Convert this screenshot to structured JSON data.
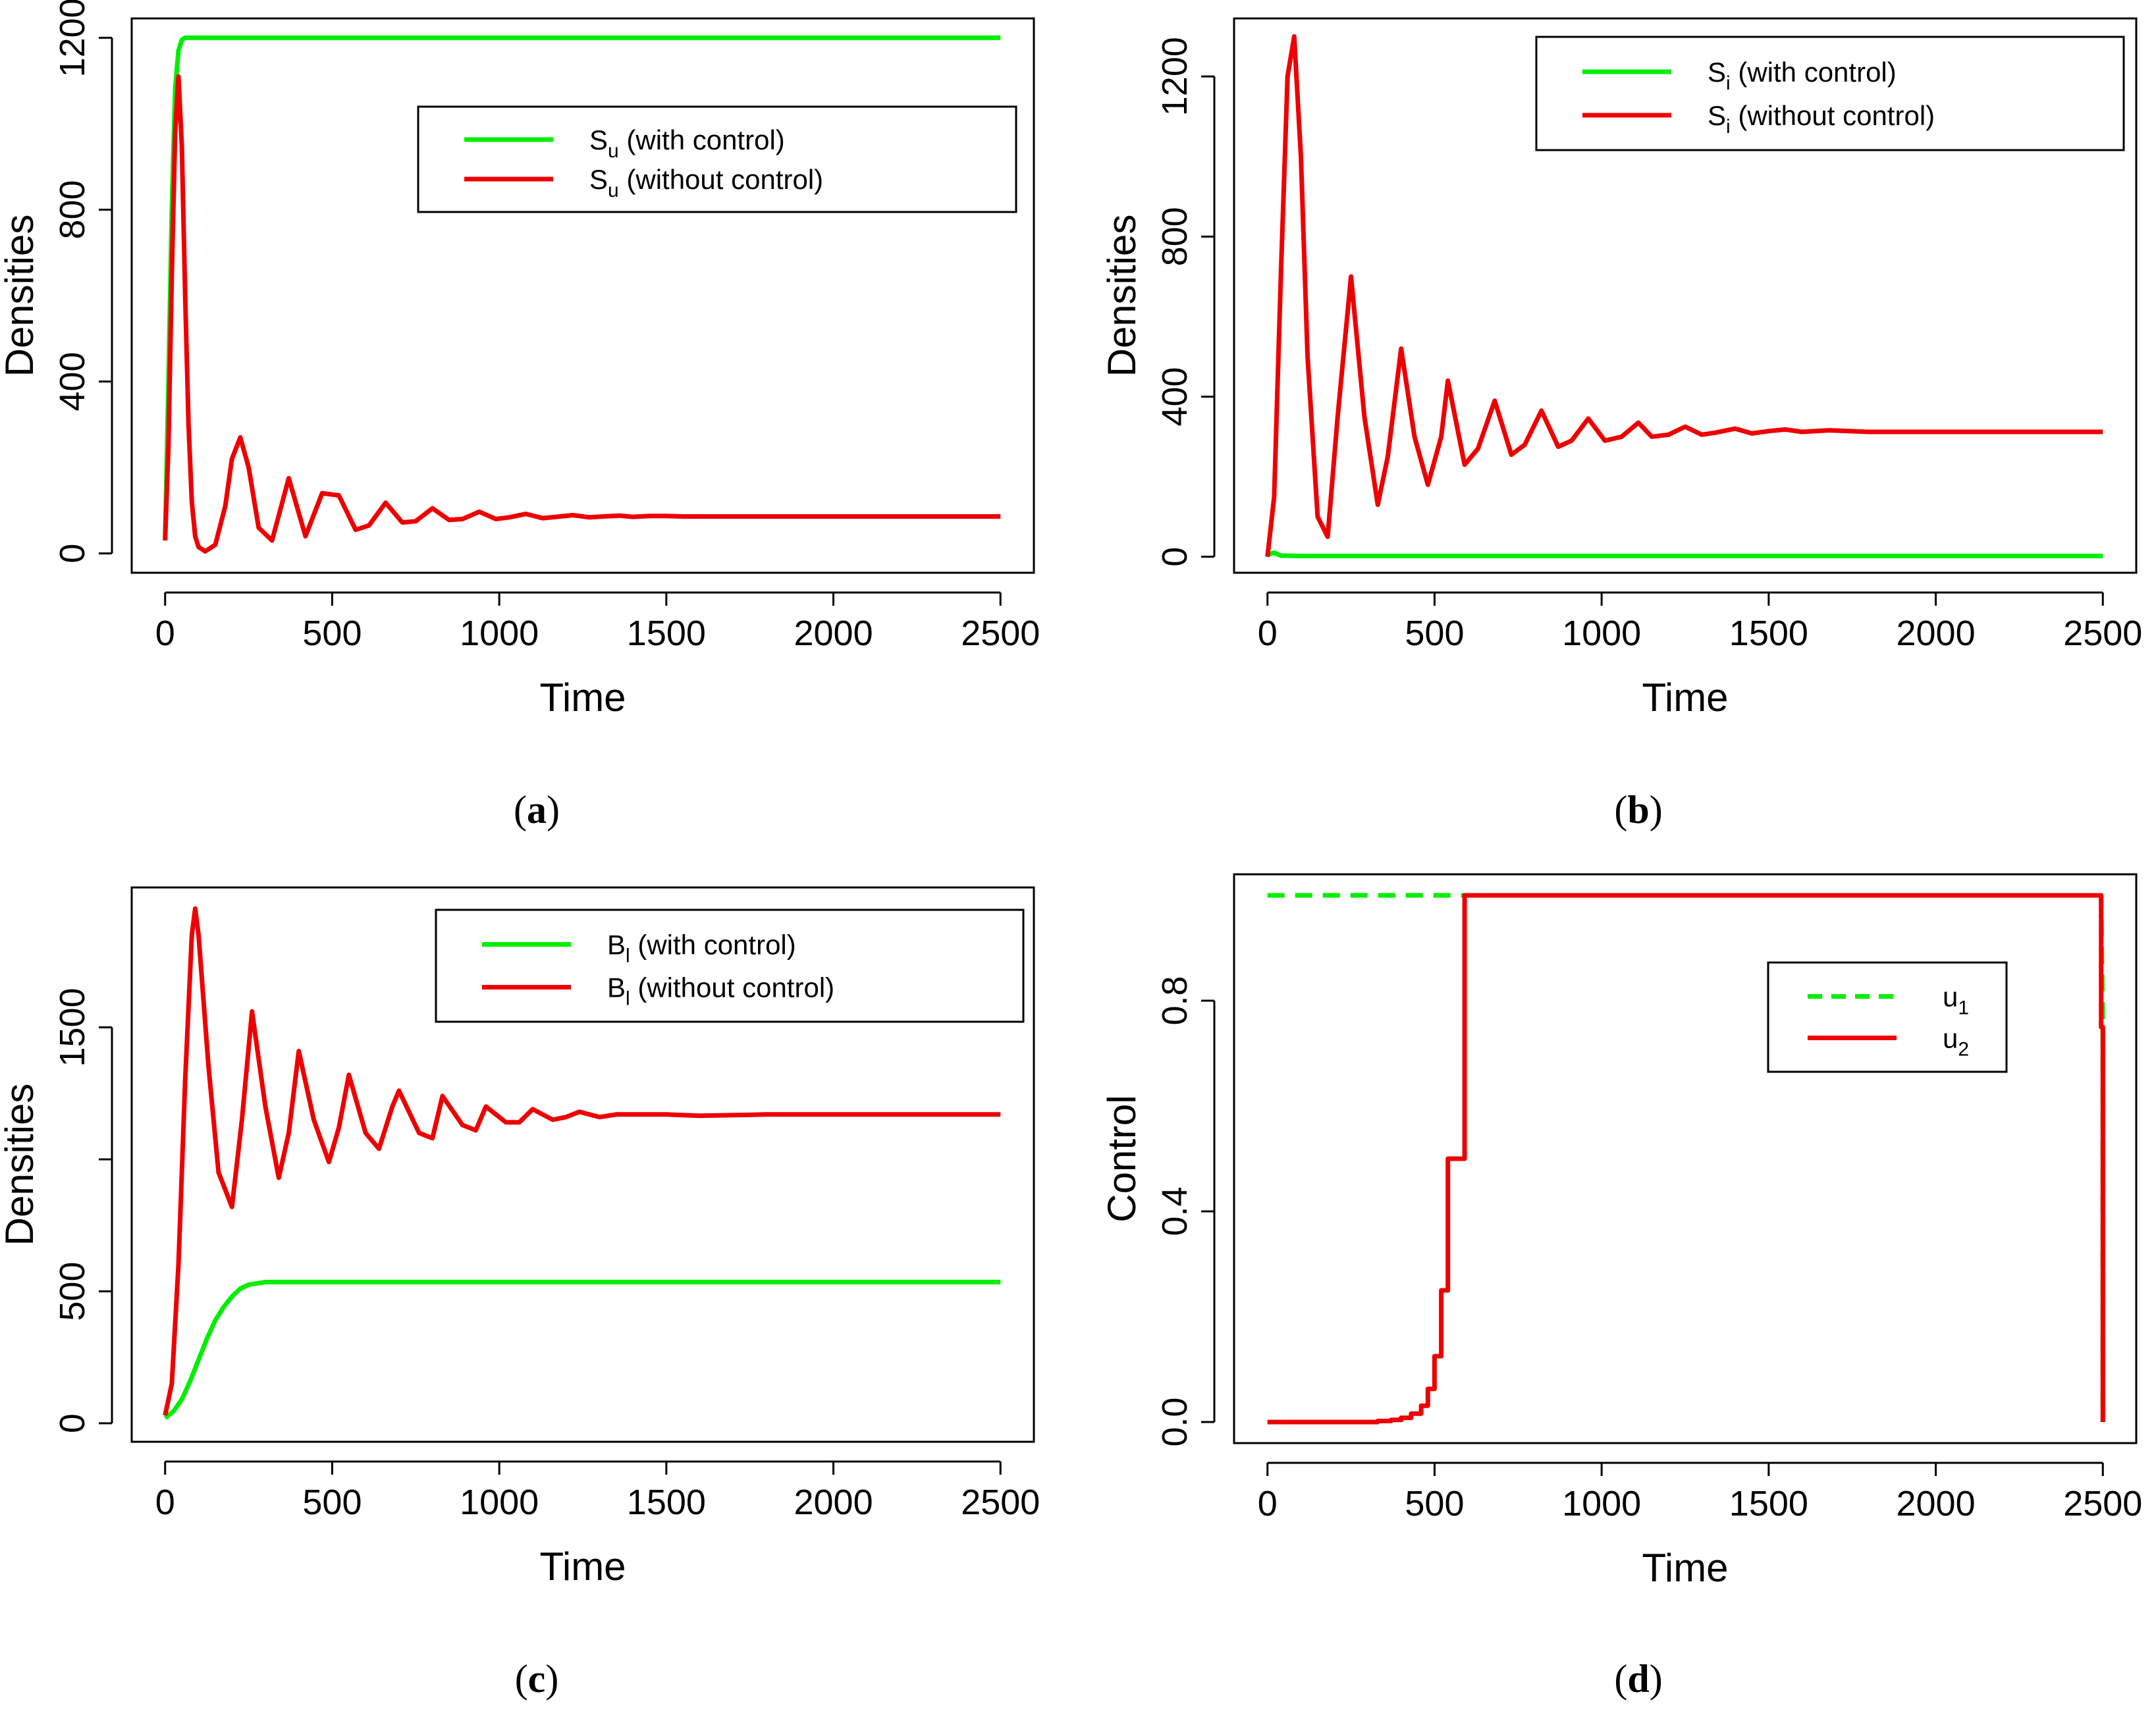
{
  "colors": {
    "with_control": "#00ee00",
    "without_control": "#ee0000",
    "u1": "#00ee00",
    "u2": "#ee0000"
  },
  "chart_data": [
    {
      "panel": "a",
      "type": "line",
      "xlabel": "Time",
      "ylabel": "Densities",
      "xlim": [
        -100,
        2600
      ],
      "ylim": [
        -45,
        1245
      ],
      "xticks": [
        0,
        500,
        1000,
        1500,
        2000,
        2500
      ],
      "yticks": [
        0,
        400,
        800,
        1200
      ],
      "legend_position": "top-right",
      "series": [
        {
          "name": "with control",
          "label_sym": "S",
          "label_sub": "u",
          "label_rest": " (with control)",
          "color": "#00ee00",
          "style": "solid",
          "x": [
            0,
            10,
            20,
            30,
            40,
            50,
            60,
            80,
            100,
            200,
            500,
            1000,
            1500,
            2000,
            2500
          ],
          "y": [
            30,
            400,
            800,
            1080,
            1170,
            1195,
            1200,
            1200,
            1200,
            1200,
            1200,
            1200,
            1200,
            1200,
            1200
          ]
        },
        {
          "name": "without control",
          "label_sym": "S",
          "label_sub": "u",
          "label_rest": " (without control)",
          "color": "#ee0000",
          "style": "solid",
          "x": [
            0,
            10,
            20,
            30,
            40,
            50,
            60,
            70,
            80,
            90,
            100,
            120,
            150,
            180,
            200,
            225,
            250,
            280,
            320,
            370,
            420,
            470,
            520,
            570,
            610,
            660,
            710,
            750,
            800,
            850,
            890,
            940,
            990,
            1030,
            1080,
            1130,
            1170,
            1220,
            1270,
            1310,
            1360,
            1400,
            1450,
            1500,
            1550,
            1650,
            1800,
            2000,
            2200,
            2500
          ],
          "y": [
            30,
            250,
            650,
            980,
            1110,
            950,
            600,
            300,
            120,
            40,
            15,
            5,
            20,
            110,
            220,
            270,
            200,
            60,
            30,
            175,
            40,
            140,
            135,
            55,
            65,
            118,
            72,
            75,
            105,
            78,
            80,
            97,
            80,
            84,
            92,
            82,
            85,
            89,
            84,
            86,
            88,
            85,
            87,
            87,
            86,
            86,
            86,
            86,
            86,
            86
          ]
        }
      ]
    },
    {
      "panel": "b",
      "type": "line",
      "xlabel": "Time",
      "ylabel": "Densities",
      "xlim": [
        -100,
        2600
      ],
      "ylim": [
        -40,
        1345
      ],
      "xticks": [
        0,
        500,
        1000,
        1500,
        2000,
        2500
      ],
      "yticks": [
        0,
        400,
        800,
        1200
      ],
      "legend_position": "top-right",
      "series": [
        {
          "name": "with control",
          "label_sym": "S",
          "label_sub": "i",
          "label_rest": " (with control)",
          "color": "#00ee00",
          "style": "solid",
          "x": [
            0,
            20,
            40,
            100,
            500,
            1000,
            1500,
            2000,
            2500
          ],
          "y": [
            5,
            10,
            3,
            2,
            2,
            2,
            2,
            2,
            2
          ]
        },
        {
          "name": "without control",
          "label_sym": "S",
          "label_sub": "i",
          "label_rest": " (without control)",
          "color": "#ee0000",
          "style": "solid",
          "x": [
            0,
            20,
            40,
            60,
            80,
            100,
            120,
            150,
            180,
            210,
            250,
            290,
            330,
            360,
            400,
            440,
            480,
            520,
            540,
            590,
            630,
            680,
            730,
            770,
            820,
            870,
            910,
            960,
            1010,
            1060,
            1110,
            1150,
            1200,
            1250,
            1300,
            1340,
            1400,
            1450,
            1500,
            1550,
            1600,
            1680,
            1800,
            2000,
            2500
          ],
          "y": [
            0,
            150,
            700,
            1200,
            1300,
            1000,
            500,
            100,
            50,
            350,
            700,
            350,
            130,
            250,
            520,
            300,
            180,
            300,
            440,
            230,
            270,
            390,
            255,
            280,
            365,
            275,
            290,
            345,
            290,
            300,
            335,
            300,
            305,
            325,
            305,
            310,
            320,
            308,
            314,
            318,
            312,
            316,
            312,
            312,
            312
          ]
        }
      ]
    },
    {
      "panel": "c",
      "type": "line",
      "xlabel": "Time",
      "ylabel": "Densities",
      "xlim": [
        -100,
        2600
      ],
      "ylim": [
        -70,
        2030
      ],
      "xticks": [
        0,
        500,
        1000,
        1500,
        2000,
        2500
      ],
      "yticks": [
        0,
        500,
        1000,
        1500
      ],
      "ytick_labels": [
        "0",
        "500",
        "",
        "1500"
      ],
      "legend_position": "top-right",
      "series": [
        {
          "name": "with control",
          "label_sym": "B",
          "label_sub": "l",
          "label_rest": " (with control)",
          "color": "#00ee00",
          "style": "solid",
          "x": [
            0,
            25,
            50,
            75,
            100,
            125,
            150,
            175,
            200,
            225,
            250,
            300,
            350,
            500,
            1000,
            1500,
            2000,
            2500
          ],
          "y": [
            20,
            45,
            90,
            160,
            240,
            320,
            390,
            440,
            480,
            510,
            525,
            535,
            535,
            535,
            535,
            535,
            535,
            535
          ]
        },
        {
          "name": "without control",
          "label_sym": "B",
          "label_sub": "l",
          "label_rest": " (without control)",
          "color": "#ee0000",
          "style": "solid",
          "x": [
            0,
            20,
            40,
            60,
            80,
            90,
            100,
            130,
            160,
            200,
            230,
            260,
            300,
            340,
            370,
            400,
            445,
            490,
            520,
            550,
            600,
            640,
            680,
            700,
            760,
            800,
            830,
            890,
            930,
            960,
            1020,
            1060,
            1100,
            1160,
            1200,
            1240,
            1300,
            1350,
            1400,
            1500,
            1600,
            1800,
            2000,
            2500
          ],
          "y": [
            30,
            150,
            600,
            1300,
            1850,
            1950,
            1850,
            1350,
            950,
            820,
            1150,
            1560,
            1200,
            930,
            1100,
            1410,
            1150,
            990,
            1120,
            1320,
            1100,
            1040,
            1200,
            1260,
            1100,
            1080,
            1240,
            1130,
            1110,
            1200,
            1140,
            1140,
            1190,
            1150,
            1160,
            1180,
            1160,
            1170,
            1170,
            1170,
            1165,
            1170,
            1170,
            1170
          ]
        }
      ]
    },
    {
      "panel": "d",
      "type": "line",
      "xlabel": "Time",
      "ylabel": "Control",
      "xlim": [
        -100,
        2600
      ],
      "ylim": [
        -0.04,
        1.04
      ],
      "xticks": [
        0,
        500,
        1000,
        1500,
        2000,
        2500
      ],
      "yticks": [
        0.0,
        0.4,
        0.8
      ],
      "ytick_labels": [
        "0.0",
        "0.4",
        "0.8"
      ],
      "legend_position": "right",
      "series": [
        {
          "name": "u1",
          "label_sym": "u",
          "label_sub": "1",
          "label_rest": "",
          "color": "#00ee00",
          "style": "dashed",
          "x": [
            0,
            2495,
            2500,
            2500
          ],
          "y": [
            1.0,
            1.0,
            0.75,
            0.0
          ]
        },
        {
          "name": "u2",
          "label_sym": "u",
          "label_sub": "2",
          "label_rest": "",
          "color": "#ee0000",
          "style": "solid",
          "x": [
            0,
            330,
            330,
            370,
            370,
            400,
            400,
            430,
            430,
            460,
            460,
            480,
            480,
            500,
            500,
            520,
            520,
            540,
            540,
            560,
            560,
            590,
            590,
            2495,
            2495,
            2500,
            2500
          ],
          "y": [
            0,
            0,
            0.002,
            0.002,
            0.004,
            0.004,
            0.008,
            0.008,
            0.016,
            0.016,
            0.031,
            0.031,
            0.063,
            0.063,
            0.125,
            0.125,
            0.25,
            0.25,
            0.5,
            0.5,
            0.5,
            0.5,
            1.0,
            1.0,
            0.75,
            0.75,
            0.0
          ]
        }
      ]
    }
  ],
  "captions": [
    {
      "open": "(",
      "letter": "a",
      "close": ")"
    },
    {
      "open": "(",
      "letter": "b",
      "close": ")"
    },
    {
      "open": "(",
      "letter": "c",
      "close": ")"
    },
    {
      "open": "(",
      "letter": "d",
      "close": ")"
    }
  ]
}
